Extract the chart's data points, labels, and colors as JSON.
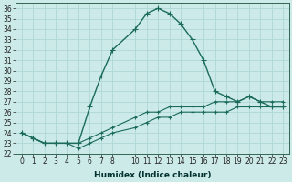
{
  "xlabel": "Humidex (Indice chaleur)",
  "bg_color": "#cceae8",
  "grid_color": "#b0d8d5",
  "line_color": "#1a6b5a",
  "x_ticks": [
    0,
    1,
    2,
    3,
    4,
    5,
    6,
    7,
    8,
    10,
    11,
    12,
    13,
    14,
    15,
    16,
    17,
    18,
    19,
    20,
    21,
    22,
    23
  ],
  "ylim": [
    22,
    36.5
  ],
  "xlim": [
    -0.5,
    23.5
  ],
  "series": [
    {
      "x": [
        0,
        1,
        2,
        3,
        4,
        5,
        6,
        7,
        8,
        10,
        11,
        12,
        13,
        14,
        15,
        16,
        17,
        18,
        19,
        20,
        21,
        22,
        23
      ],
      "y": [
        24.0,
        23.5,
        23.0,
        23.0,
        23.0,
        23.0,
        26.5,
        29.5,
        32.0,
        34.0,
        35.5,
        36.0,
        35.5,
        34.5,
        33.0,
        31.0,
        28.0,
        27.5,
        27.0,
        27.5,
        27.0,
        26.5,
        26.5
      ],
      "marker": "+",
      "lw": 1.0,
      "ms": 5
    },
    {
      "x": [
        0,
        1,
        2,
        3,
        4,
        5,
        6,
        7,
        8,
        10,
        11,
        12,
        13,
        14,
        15,
        16,
        17,
        18,
        19,
        20,
        21,
        22,
        23
      ],
      "y": [
        24.0,
        23.5,
        23.0,
        23.0,
        23.0,
        23.0,
        23.5,
        24.0,
        24.5,
        25.5,
        26.0,
        26.0,
        26.5,
        26.5,
        26.5,
        26.5,
        27.0,
        27.0,
        27.0,
        27.5,
        27.0,
        27.0,
        27.0
      ],
      "marker": "+",
      "lw": 0.8,
      "ms": 3
    },
    {
      "x": [
        0,
        1,
        2,
        3,
        4,
        5,
        6,
        7,
        8,
        10,
        11,
        12,
        13,
        14,
        15,
        16,
        17,
        18,
        19,
        20,
        21,
        22,
        23
      ],
      "y": [
        24.0,
        23.5,
        23.0,
        23.0,
        23.0,
        22.5,
        23.0,
        23.5,
        24.0,
        24.5,
        25.0,
        25.5,
        25.5,
        26.0,
        26.0,
        26.0,
        26.0,
        26.0,
        26.5,
        26.5,
        26.5,
        26.5,
        26.5
      ],
      "marker": "+",
      "lw": 0.8,
      "ms": 3
    }
  ],
  "ytick_min": 22,
  "ytick_max": 36,
  "tick_fontsize": 5.5,
  "xlabel_fontsize": 6.5
}
